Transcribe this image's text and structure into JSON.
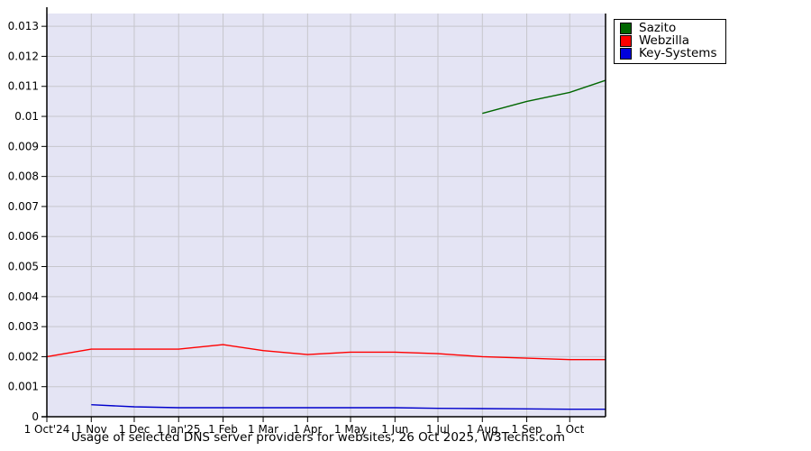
{
  "title": "Usage of selected DNS server providers for websites, 26 Oct 2025, W3Techs.com",
  "legend": {
    "items": [
      {
        "label": "Sazito",
        "color": "#006600"
      },
      {
        "label": "Webzilla",
        "color": "#ff0000"
      },
      {
        "label": "Key-Systems",
        "color": "#0000dd"
      }
    ]
  },
  "chart_data": {
    "type": "line",
    "title": "Usage of selected DNS server providers for websites, 26 Oct 2025, W3Techs.com",
    "xlabel": "",
    "ylabel": "",
    "grid": true,
    "legend_position": "top-right-outside",
    "plot_background": "#e4e4f4",
    "gridline_color": "#c6c6cc",
    "axis_color": "#000000",
    "x_unit": "days since 1 Oct 2024",
    "x_range_days": [
      0,
      390
    ],
    "ylim": [
      0,
      0.013425
    ],
    "y_ticks": [
      0,
      0.001,
      0.002,
      0.003,
      0.004,
      0.005,
      0.006,
      0.007,
      0.008,
      0.009,
      0.01,
      0.011,
      0.012,
      0.013
    ],
    "x_ticks": [
      {
        "day": 0,
        "label": "1 Oct'24"
      },
      {
        "day": 31,
        "label": "1 Nov"
      },
      {
        "day": 61,
        "label": "1 Dec"
      },
      {
        "day": 92,
        "label": "1 Jan'25"
      },
      {
        "day": 123,
        "label": "1 Feb"
      },
      {
        "day": 151,
        "label": "1 Mar"
      },
      {
        "day": 182,
        "label": "1 Apr"
      },
      {
        "day": 212,
        "label": "1 May"
      },
      {
        "day": 243,
        "label": "1 Jun"
      },
      {
        "day": 273,
        "label": "1 Jul"
      },
      {
        "day": 304,
        "label": "1 Aug"
      },
      {
        "day": 335,
        "label": "1 Sep"
      },
      {
        "day": 365,
        "label": "1 Oct"
      }
    ],
    "series": [
      {
        "name": "Sazito",
        "color": "#006600",
        "points": [
          [
            304,
            0.0101
          ],
          [
            335,
            0.0105
          ],
          [
            365,
            0.0108
          ],
          [
            390,
            0.0112
          ]
        ]
      },
      {
        "name": "Webzilla",
        "color": "#ff0000",
        "points": [
          [
            0,
            0.002
          ],
          [
            31,
            0.00225
          ],
          [
            61,
            0.00225
          ],
          [
            92,
            0.00225
          ],
          [
            123,
            0.0024
          ],
          [
            151,
            0.0022
          ],
          [
            182,
            0.00207
          ],
          [
            212,
            0.00215
          ],
          [
            243,
            0.00215
          ],
          [
            273,
            0.0021
          ],
          [
            304,
            0.002
          ],
          [
            335,
            0.00195
          ],
          [
            365,
            0.0019
          ],
          [
            390,
            0.0019
          ]
        ]
      },
      {
        "name": "Key-Systems",
        "color": "#0000cc",
        "points": [
          [
            31,
            0.0004
          ],
          [
            61,
            0.00033
          ],
          [
            92,
            0.0003
          ],
          [
            123,
            0.0003
          ],
          [
            151,
            0.0003
          ],
          [
            182,
            0.0003
          ],
          [
            212,
            0.0003
          ],
          [
            243,
            0.0003
          ],
          [
            273,
            0.00028
          ],
          [
            304,
            0.00027
          ],
          [
            335,
            0.00026
          ],
          [
            365,
            0.00025
          ],
          [
            390,
            0.00025
          ]
        ]
      }
    ]
  }
}
